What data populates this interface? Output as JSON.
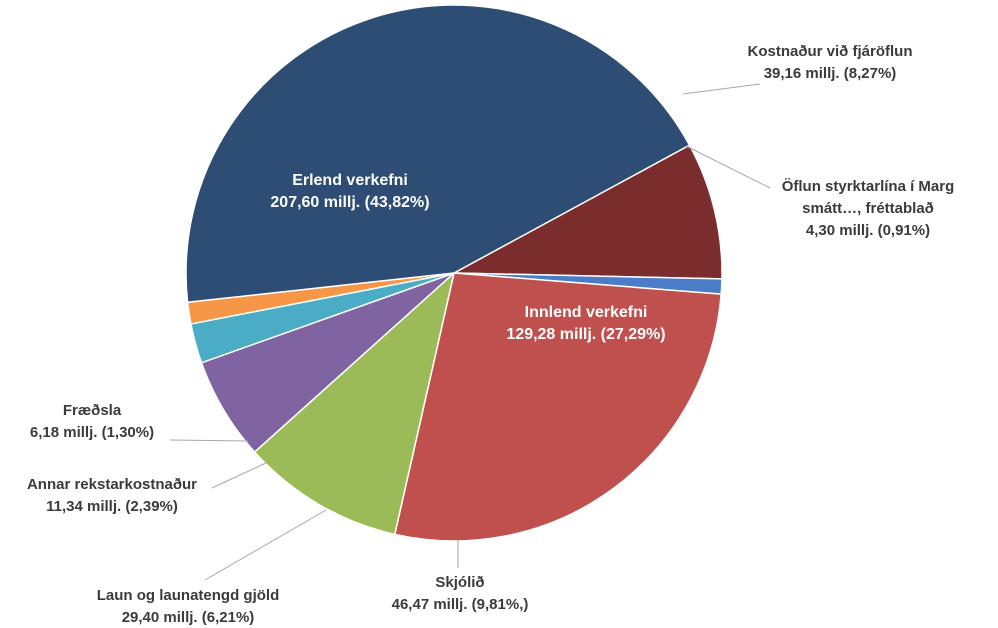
{
  "chart_data": {
    "type": "pie",
    "title": "",
    "slices": [
      {
        "name": "Kostnaður við fjáröflun",
        "value": 39.16,
        "value_text": "39,16 millj. (8,27%)",
        "label_lines": [
          "Kostnaður við fjáröflun"
        ],
        "color": "#7b2d2d"
      },
      {
        "name": "Öflun styrktarlína í Marg smátt..., fréttablað",
        "value": 4.3,
        "value_text": "4,30 millj. (0,91%)",
        "label_lines": [
          "Öflun styrktarlína í Marg",
          "smátt…, fréttablað"
        ],
        "color": "#4a7cc7"
      },
      {
        "name": "Innlend verkefni",
        "value": 129.28,
        "value_text": "129,28 millj. (27,29%)",
        "label_lines": [
          "Innlend verkefni"
        ],
        "color": "#c0504d"
      },
      {
        "name": "Skjólið",
        "value": 46.47,
        "value_text": "46,47 millj. (9,81%,)",
        "label_lines": [
          "Skjólið"
        ],
        "color": "#9bbb59"
      },
      {
        "name": "Laun og launatengd gjöld",
        "value": 29.4,
        "value_text": "29,40 millj. (6,21%)",
        "label_lines": [
          "Laun og launatengd gjöld"
        ],
        "color": "#8064a2"
      },
      {
        "name": "Annar rekstarkostnaður",
        "value": 11.34,
        "value_text": "11,34 millj. (2,39%)",
        "label_lines": [
          "Annar rekstarkostnaður"
        ],
        "color": "#4bacc6"
      },
      {
        "name": "Fræðsla",
        "value": 6.18,
        "value_text": "6,18 millj. (1,30%)",
        "label_lines": [
          "Fræðsla"
        ],
        "color": "#f79646"
      },
      {
        "name": "Erlend verkefni",
        "value": 207.6,
        "value_text": "207,60 millj. (43,82%)",
        "label_lines": [
          "Erlend verkefni"
        ],
        "color": "#2e4d75"
      }
    ]
  }
}
